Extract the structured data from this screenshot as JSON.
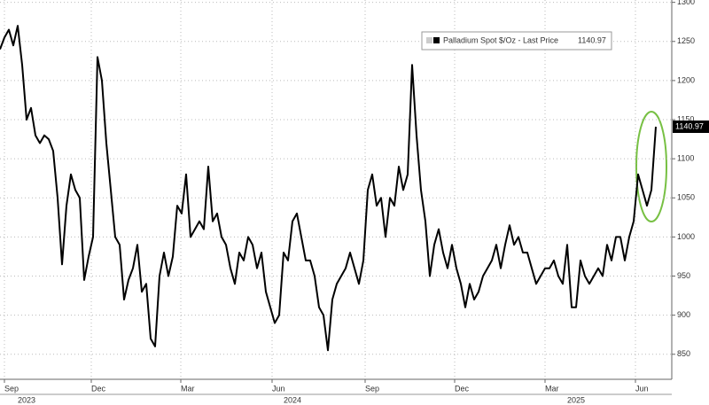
{
  "chart_data": {
    "type": "line",
    "series": [
      {
        "name": "Palladium Spot $/Oz - Last Price",
        "color": "#000000",
        "values": [
          1240,
          1255,
          1265,
          1245,
          1270,
          1220,
          1150,
          1165,
          1130,
          1120,
          1130,
          1125,
          1110,
          1050,
          965,
          1040,
          1080,
          1060,
          1050,
          945,
          975,
          1000,
          1230,
          1200,
          1120,
          1060,
          1000,
          990,
          920,
          945,
          960,
          990,
          930,
          940,
          870,
          860,
          950,
          980,
          950,
          975,
          1040,
          1030,
          1080,
          1000,
          1010,
          1020,
          1010,
          1090,
          1020,
          1030,
          1000,
          990,
          960,
          940,
          980,
          970,
          1000,
          990,
          960,
          980,
          930,
          910,
          890,
          900,
          980,
          970,
          1020,
          1030,
          1000,
          970,
          970,
          950,
          910,
          900,
          855,
          920,
          940,
          950,
          960,
          980,
          960,
          940,
          970,
          1060,
          1080,
          1040,
          1050,
          1000,
          1050,
          1040,
          1090,
          1060,
          1080,
          1220,
          1130,
          1060,
          1020,
          950,
          990,
          1010,
          980,
          960,
          990,
          960,
          940,
          910,
          940,
          920,
          930,
          950,
          960,
          970,
          990,
          960,
          990,
          1015,
          990,
          1000,
          980,
          980,
          960,
          940,
          950,
          960,
          960,
          970,
          950,
          940,
          990,
          910,
          910,
          970,
          950,
          940,
          950,
          960,
          950,
          990,
          970,
          1000,
          1000,
          970,
          1000,
          1020,
          1080,
          1060,
          1040,
          1060,
          1140.97
        ]
      }
    ],
    "x": [
      0,
      1,
      2,
      3,
      4,
      5,
      6,
      7,
      8,
      9,
      10,
      11,
      12,
      13,
      14,
      15,
      16,
      17,
      18,
      19,
      20,
      21,
      22,
      23,
      24,
      25,
      26,
      27,
      28,
      29,
      30,
      31,
      32,
      33,
      34,
      35,
      36,
      37,
      38,
      39,
      40,
      41,
      42,
      43,
      44,
      45,
      46,
      47,
      48,
      49,
      50,
      51,
      52,
      53,
      54,
      55,
      56,
      57,
      58,
      59,
      60,
      61,
      62,
      63,
      64,
      65,
      66,
      67,
      68,
      69,
      70,
      71,
      72,
      73,
      74,
      75,
      76,
      77,
      78,
      79,
      80,
      81,
      82,
      83,
      84,
      85,
      86,
      87,
      88,
      89,
      90,
      91,
      92,
      93,
      94,
      95,
      96,
      97,
      98,
      99,
      100,
      101,
      102,
      103,
      104,
      105,
      106,
      107,
      108,
      109,
      110,
      111,
      112,
      113,
      114,
      115,
      116,
      117,
      118,
      119,
      120,
      121,
      122,
      123,
      124,
      125,
      126,
      127,
      128,
      129,
      130,
      131,
      132,
      133,
      134,
      135,
      136,
      137,
      138,
      139,
      140,
      141,
      142,
      143,
      144,
      145,
      146,
      147,
      148
    ],
    "xlim": [
      0,
      151.6
    ],
    "xticks": [
      {
        "value": 1,
        "label": "Sep"
      },
      {
        "value": 20.6,
        "label": "Dec"
      },
      {
        "value": 40.8,
        "label": "Mar"
      },
      {
        "value": 61.4,
        "label": "Jun"
      },
      {
        "value": 82.4,
        "label": "Sep"
      },
      {
        "value": 102.6,
        "label": "Dec"
      },
      {
        "value": 123,
        "label": "Mar"
      },
      {
        "value": 143.4,
        "label": "Jun"
      }
    ],
    "year_labels": [
      {
        "value": 6,
        "label": "2023"
      },
      {
        "value": 66,
        "label": "2024"
      },
      {
        "value": 130,
        "label": "2025"
      }
    ],
    "ylim": [
      818,
      1303
    ],
    "yticks": [
      850,
      900,
      950,
      1000,
      1050,
      1100,
      1150,
      1200,
      1250,
      1300
    ],
    "grid": true
  }
}
